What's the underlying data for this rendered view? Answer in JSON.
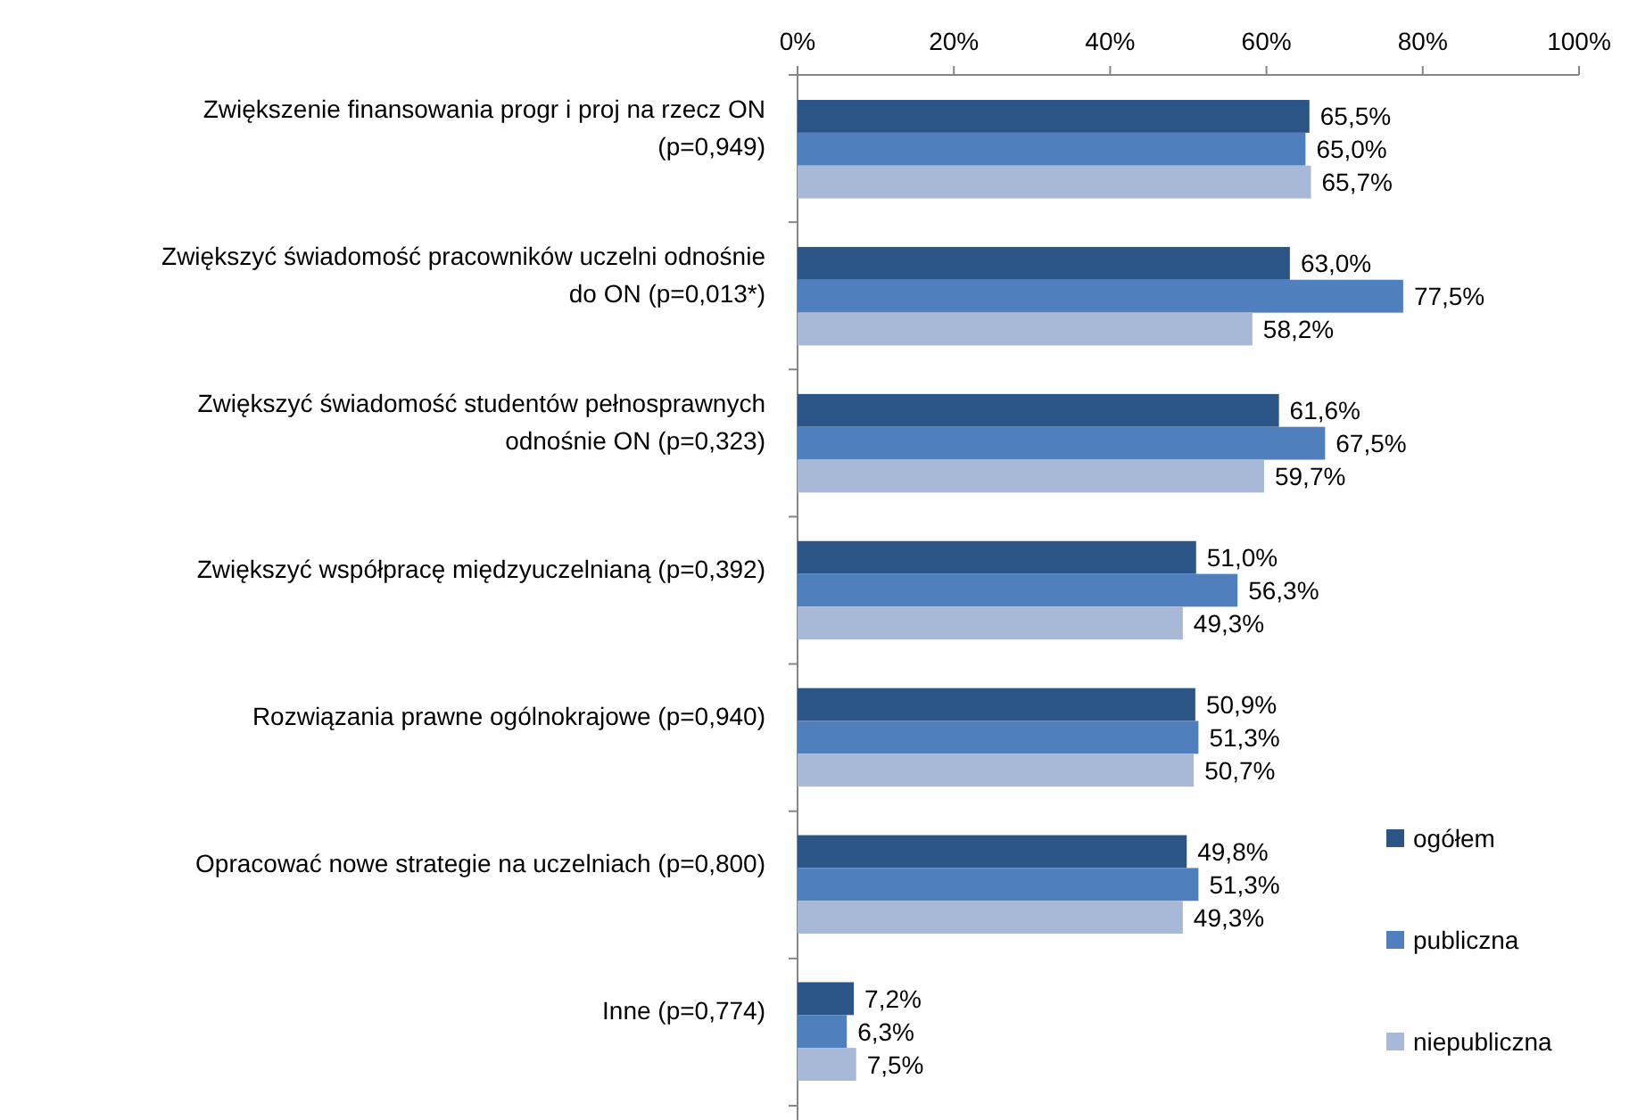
{
  "chart_data": {
    "type": "bar",
    "orientation": "horizontal",
    "categories": [
      "Zwiększenie finansowania progr i proj na rzecz ON (p=0,949)",
      "Zwiększyć świadomość pracowników uczelni odnośnie do ON (p=0,013*)",
      "Zwiększyć świadomość studentów pełnosprawnych odnośnie ON (p=0,323)",
      "Zwiększyć współpracę międzyuczelnianą (p=0,392)",
      "Rozwiązania prawne ogólnokrajowe (p=0,940)",
      "Opracować nowe strategie na uczelniach (p=0,800)",
      "Inne (p=0,774)"
    ],
    "series": [
      {
        "name": "ogółem",
        "color": "#2c5587",
        "values": [
          65.5,
          63.0,
          61.6,
          51.0,
          50.9,
          49.8,
          7.2
        ],
        "value_labels": [
          "65,5%",
          "63,0%",
          "61,6%",
          "51,0%",
          "50,9%",
          "49,8%",
          "7,2%"
        ]
      },
      {
        "name": "publiczna",
        "color": "#4f7fbd",
        "values": [
          65.0,
          77.5,
          67.5,
          56.3,
          51.3,
          51.3,
          6.3
        ],
        "value_labels": [
          "65,0%",
          "77,5%",
          "67,5%",
          "56,3%",
          "51,3%",
          "51,3%",
          "6,3%"
        ]
      },
      {
        "name": "niepubliczna",
        "color": "#a8b9d8",
        "values": [
          65.7,
          58.2,
          59.7,
          49.3,
          50.7,
          49.3,
          7.5
        ],
        "value_labels": [
          "65,7%",
          "58,2%",
          "59,7%",
          "49,3%",
          "50,7%",
          "49,3%",
          "7,5%"
        ]
      }
    ],
    "xlim": [
      0,
      100
    ],
    "xticks": [
      {
        "value": 0,
        "label": "0%"
      },
      {
        "value": 20,
        "label": "20%"
      },
      {
        "value": 40,
        "label": "40%"
      },
      {
        "value": 60,
        "label": "60%"
      },
      {
        "value": 80,
        "label": "80%"
      },
      {
        "value": 100,
        "label": "100%"
      }
    ],
    "legend": "right"
  }
}
